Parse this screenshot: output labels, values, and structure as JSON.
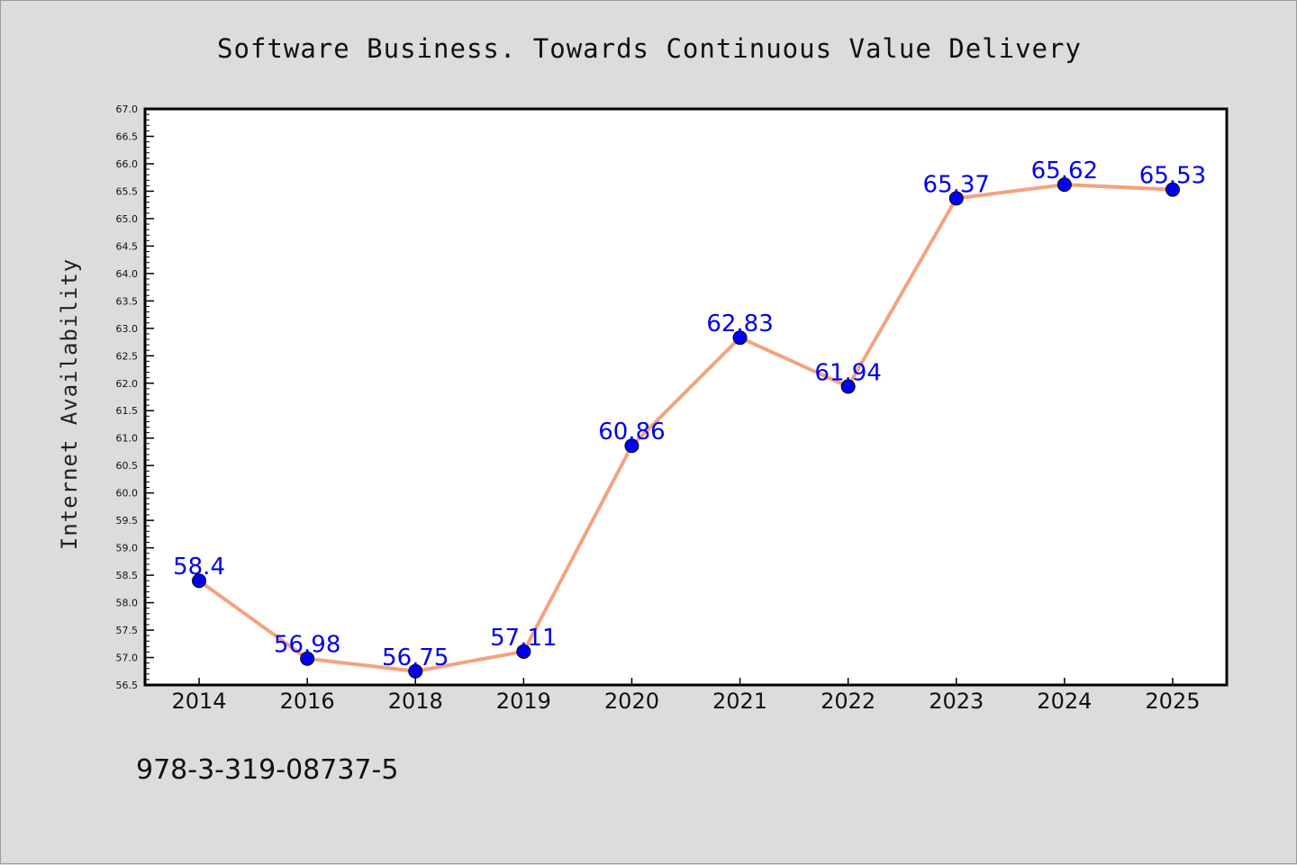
{
  "chart_data": {
    "type": "line",
    "title": "Software Business. Towards Continuous Value Delivery",
    "xlabel": "",
    "ylabel": "Internet Availability",
    "categories": [
      "2014",
      "2016",
      "2018",
      "2019",
      "2020",
      "2021",
      "2022",
      "2023",
      "2024",
      "2025"
    ],
    "values": [
      58.4,
      56.98,
      56.75,
      57.11,
      60.86,
      62.83,
      61.94,
      65.37,
      65.62,
      65.53
    ],
    "data_labels": [
      "58.4",
      "56.98",
      "56.75",
      "57.11",
      "60.86",
      "62.83",
      "61.94",
      "65.37",
      "65.62",
      "65.53"
    ],
    "ylim": [
      56.5,
      67.0
    ],
    "ytick_step": 0.5,
    "grid": false,
    "line_color": "#f4a27f",
    "marker_color": "#0000ee",
    "label_color": "#0000ee"
  },
  "footer": {
    "isbn": "978-3-319-08737-5"
  }
}
